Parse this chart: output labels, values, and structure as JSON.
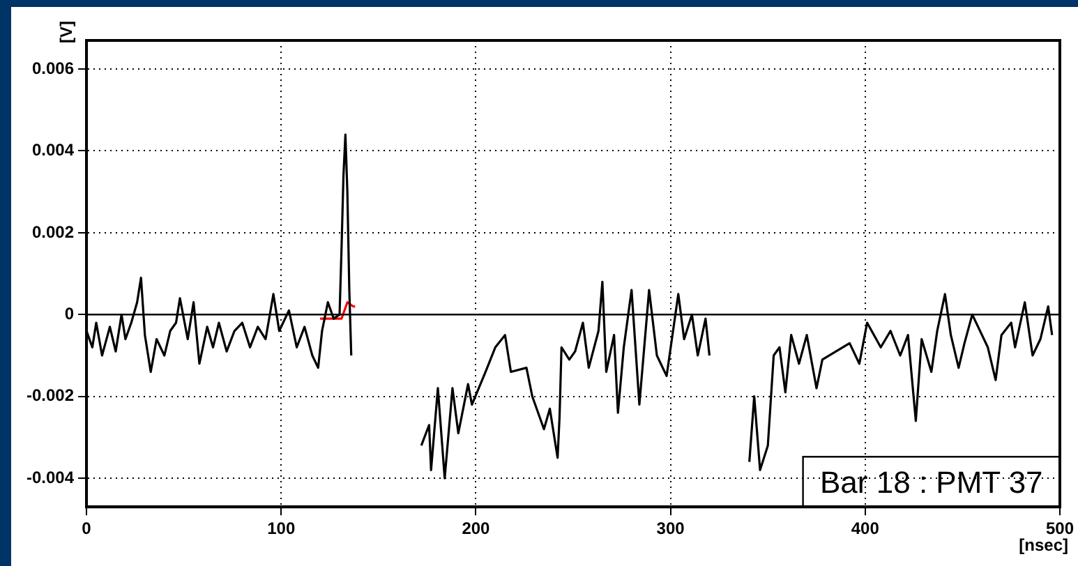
{
  "chart_data": {
    "type": "line",
    "xlabel": "[nsec]",
    "ylabel": "[V]",
    "xlim": [
      0,
      500
    ],
    "xticks": [
      0,
      100,
      200,
      300,
      400,
      500
    ],
    "ylim": [
      -0.0047,
      0.0067
    ],
    "yticks": [
      -0.004,
      -0.002,
      0,
      0.002,
      0.004,
      0.006
    ],
    "grid": true,
    "legend": false,
    "ref_lines": [
      {
        "axis": "y",
        "value": 0,
        "color": "#000000"
      }
    ],
    "annotations": [
      "Bar 18 : PMT 37"
    ],
    "series": [
      {
        "color": "#000000",
        "x": [
          0,
          3,
          5,
          8,
          12,
          15,
          18,
          20,
          23,
          26,
          28,
          30,
          33,
          36,
          40,
          43,
          46,
          48,
          52,
          55,
          58,
          62,
          65,
          68,
          72,
          76,
          80,
          84,
          88,
          92,
          96,
          99,
          104,
          108,
          112,
          116,
          119,
          121,
          124,
          127,
          130,
          131,
          132,
          133,
          134,
          135,
          136,
          137,
          170,
          172,
          176,
          177,
          180.5,
          184,
          188,
          191,
          196,
          198,
          205,
          210,
          215,
          218,
          226,
          229,
          235,
          238,
          242,
          243,
          244,
          248,
          251,
          255,
          258,
          263,
          265,
          267,
          271,
          273,
          276,
          280,
          284,
          289,
          293,
          298,
          304,
          307,
          311,
          314,
          318,
          320,
          322,
          339,
          340.5,
          343,
          346,
          350,
          353,
          356,
          359,
          362,
          366,
          370,
          375,
          378,
          385,
          392,
          397,
          401,
          408,
          413,
          418,
          422,
          426,
          429,
          434,
          437,
          441,
          444,
          448,
          451,
          455,
          458,
          463,
          467,
          470,
          475,
          477,
          482,
          486,
          490,
          494,
          496
        ],
        "values": [
          -0.0004,
          -0.0008,
          -0.0002,
          -0.001,
          -0.0003,
          -0.0009,
          0,
          -0.0006,
          -0.0002,
          0.0003,
          0.0009,
          -0.0005,
          -0.0014,
          -0.0006,
          -0.001,
          -0.0004,
          -0.0002,
          0.0004,
          -0.0006,
          0.0003,
          -0.0012,
          -0.0003,
          -0.0008,
          -0.0002,
          -0.0009,
          -0.0004,
          -0.0002,
          -0.0008,
          -0.0003,
          -0.0006,
          0.0005,
          -0.0004,
          0.0001,
          -0.0008,
          -0.0003,
          -0.001,
          -0.0013,
          -0.0004,
          0.0003,
          -0.0001,
          0,
          0.0016,
          0.0034,
          0.0044,
          0.003,
          0.0006,
          -0.001,
          null,
          null,
          -0.0032,
          -0.0027,
          -0.0038,
          -0.0018,
          -0.004,
          -0.0018,
          -0.0029,
          -0.0017,
          -0.0022,
          -0.0014,
          -0.0008,
          -0.0005,
          -0.0014,
          -0.0013,
          -0.002,
          -0.0028,
          -0.0023,
          -0.0035,
          -0.0025,
          -0.0008,
          -0.0011,
          -0.0009,
          -0.0002,
          -0.0013,
          -0.0004,
          0.0008,
          -0.0014,
          -0.0005,
          -0.0024,
          -0.0008,
          0.0006,
          -0.0022,
          0.0006,
          -0.001,
          -0.0015,
          0.0005,
          -0.0006,
          0,
          -0.001,
          -0.0001,
          -0.001,
          null,
          null,
          -0.0036,
          -0.002,
          -0.0038,
          -0.0032,
          -0.001,
          -0.0008,
          -0.0019,
          -0.0005,
          -0.0012,
          -0.0005,
          -0.0018,
          -0.0011,
          -0.0009,
          -0.0007,
          -0.0012,
          -0.0002,
          -0.0008,
          -0.0004,
          -0.001,
          -0.0005,
          -0.0026,
          -0.0006,
          -0.0014,
          -0.0004,
          0.0005,
          -0.0005,
          -0.0013,
          -0.0007,
          0,
          -0.0003,
          -0.0008,
          -0.0016,
          -0.0005,
          -0.0002,
          -0.0008,
          0.0003,
          -0.001,
          -0.0006,
          0.0002,
          -0.0005
        ]
      },
      {
        "color": "#ff0000",
        "x": [
          120,
          131,
          134,
          137,
          138
        ],
        "values": [
          -0.0001,
          -0.0001,
          0.0003,
          0.0002,
          0.0002
        ]
      }
    ]
  }
}
